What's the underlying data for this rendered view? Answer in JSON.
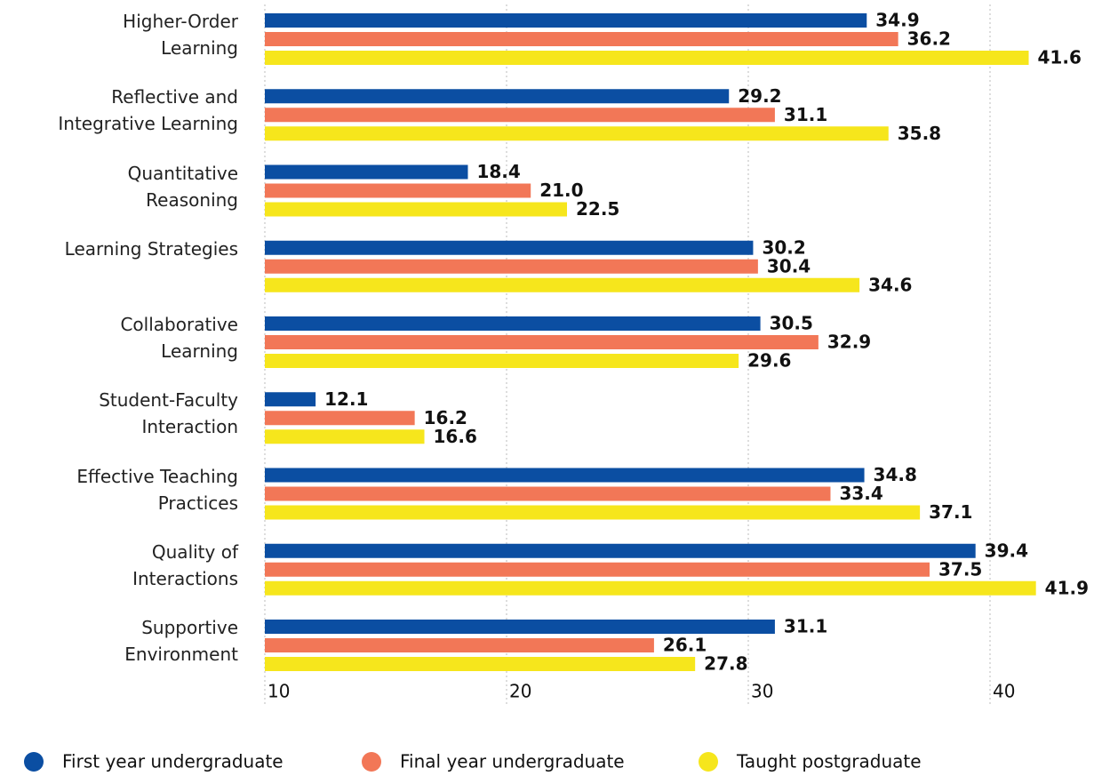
{
  "chart_data": {
    "type": "barh",
    "categories": [
      "Higher-Order\nLearning",
      "Reflective and\nIntegrative Learning",
      "Quantitative\nReasoning",
      "Learning Strategies",
      "Collaborative\nLearning",
      "Student-Faculty\nInteraction",
      "Effective Teaching\nPractices",
      "Quality of\nInteractions",
      "Supportive\nEnvironment"
    ],
    "series": [
      {
        "name": "First year undergraduate",
        "color": "#0b4ea2",
        "values": [
          34.9,
          29.2,
          18.4,
          30.2,
          30.5,
          12.1,
          34.8,
          39.4,
          31.1
        ]
      },
      {
        "name": "Final year undergraduate",
        "color": "#f27757",
        "values": [
          36.2,
          31.1,
          21.0,
          30.4,
          32.9,
          16.2,
          33.4,
          37.5,
          26.1
        ],
        "value_labels": [
          "36.2",
          "31.1",
          "21.0",
          "30.4",
          "32.9",
          "16.2",
          "33.4",
          "37.5",
          "26.1"
        ]
      },
      {
        "name": "Taught postgraduate",
        "color": "#f6e61c",
        "values": [
          41.6,
          35.8,
          22.5,
          34.6,
          29.6,
          16.6,
          37.1,
          41.9,
          27.8
        ]
      }
    ],
    "xlim": [
      10,
      42
    ],
    "xticks": [
      10,
      20,
      30,
      40
    ],
    "grid": true,
    "legend": "bottom"
  }
}
